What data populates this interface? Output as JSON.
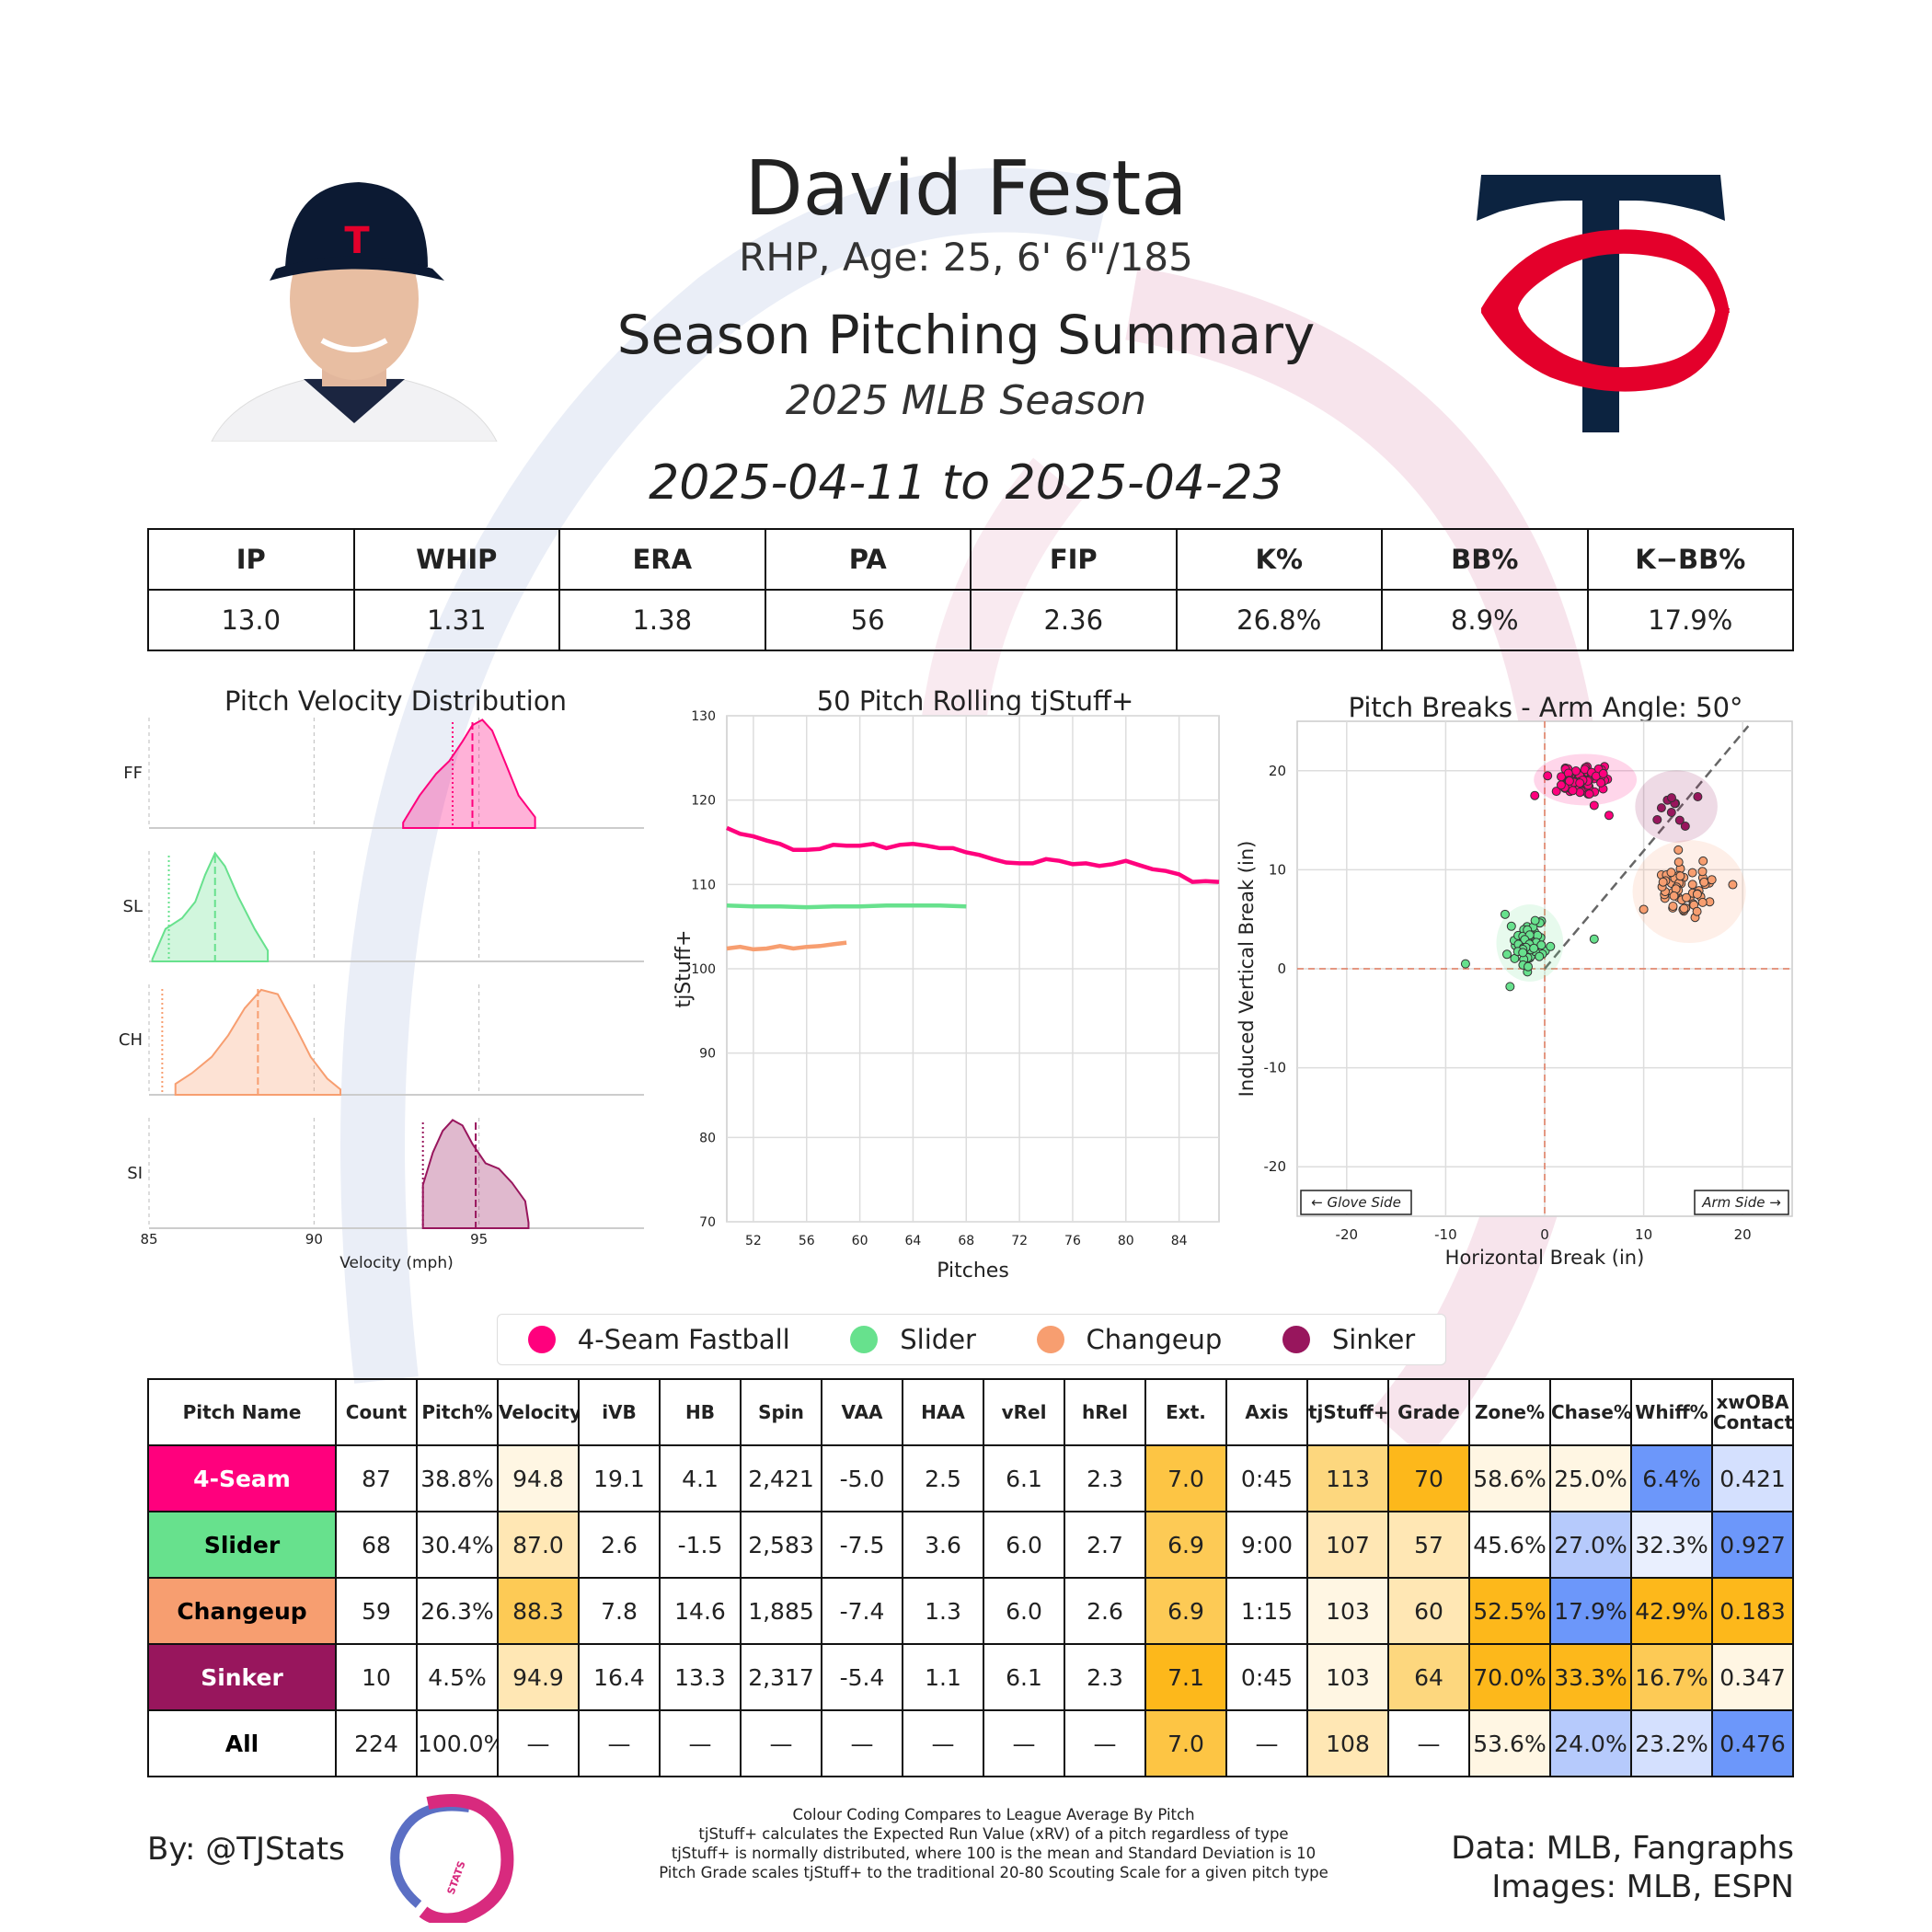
{
  "header": {
    "name": "David Festa",
    "bio": "RHP, Age: 25, 6' 6\"/185",
    "title": "Season Pitching Summary",
    "season": "2025 MLB Season",
    "dates": "2025-04-11 to 2025-04-23",
    "cap_logo_text": "TC"
  },
  "colors": {
    "ff": "#FF007D",
    "sl": "#67E18D",
    "ch": "#F79E70",
    "si": "#98165D"
  },
  "season_stats": {
    "headers": [
      "IP",
      "WHIP",
      "ERA",
      "PA",
      "FIP",
      "K%",
      "BB%",
      "K−BB%"
    ],
    "values": [
      "13.0",
      "1.31",
      "1.38",
      "56",
      "2.36",
      "26.8%",
      "8.9%",
      "17.9%"
    ]
  },
  "chart_data": [
    {
      "type": "area",
      "title": "Pitch Velocity Distribution",
      "xlabel": "Velocity (mph)",
      "x_ticks": [
        85,
        90,
        95
      ],
      "xlim": [
        85,
        100
      ],
      "series": [
        {
          "name": "FF",
          "color": "#FF007D",
          "x": [
            92.7,
            93.2,
            93.7,
            94.1,
            94.5,
            94.8,
            95.1,
            95.4,
            95.8,
            96.2,
            96.7
          ],
          "y": [
            0.05,
            0.3,
            0.5,
            0.62,
            0.8,
            0.95,
            1.0,
            0.9,
            0.6,
            0.3,
            0.1
          ],
          "mean": 94.8,
          "league_avg": 94.2
        },
        {
          "name": "SL",
          "color": "#67E18D",
          "x": [
            85.1,
            85.5,
            86.0,
            86.4,
            86.7,
            87.0,
            87.3,
            87.7,
            88.2,
            88.6
          ],
          "y": [
            0.02,
            0.3,
            0.4,
            0.55,
            0.8,
            1.0,
            0.88,
            0.6,
            0.3,
            0.1
          ],
          "mean": 87.0,
          "league_avg": 85.6
        },
        {
          "name": "CH",
          "color": "#F79E70",
          "x": [
            85.8,
            86.3,
            86.9,
            87.4,
            87.9,
            88.4,
            88.9,
            89.4,
            89.9,
            90.4,
            90.8
          ],
          "y": [
            0.1,
            0.2,
            0.35,
            0.55,
            0.8,
            0.97,
            0.93,
            0.65,
            0.35,
            0.15,
            0.05
          ],
          "mean": 88.3,
          "league_avg": 85.4
        },
        {
          "name": "SI",
          "color": "#98165D",
          "x": [
            93.3,
            93.6,
            93.9,
            94.2,
            94.5,
            94.8,
            95.2,
            95.6,
            96.0,
            96.4,
            96.5
          ],
          "y": [
            0.4,
            0.7,
            0.9,
            1.0,
            0.95,
            0.78,
            0.6,
            0.55,
            0.42,
            0.25,
            0.05
          ],
          "mean": 94.9,
          "league_avg": 93.3
        }
      ]
    },
    {
      "type": "line",
      "title": "50 Pitch Rolling tjStuff+",
      "xlabel": "Pitches",
      "ylabel": "tjStuff+",
      "x_ticks": [
        52,
        56,
        60,
        64,
        68,
        72,
        76,
        80,
        84
      ],
      "y_ticks": [
        70,
        80,
        90,
        100,
        110,
        120,
        130
      ],
      "xlim": [
        50,
        87
      ],
      "ylim": [
        70,
        130
      ],
      "series": [
        {
          "name": "4-Seam Fastball",
          "color": "#FF007D",
          "x": [
            50,
            51,
            52,
            53,
            54,
            55,
            56,
            57,
            58,
            59,
            60,
            61,
            62,
            63,
            64,
            65,
            66,
            67,
            68,
            69,
            70,
            71,
            72,
            73,
            74,
            75,
            76,
            77,
            78,
            79,
            80,
            81,
            82,
            83,
            84,
            85,
            86,
            87
          ],
          "y": [
            116.7,
            116.0,
            115.7,
            115.2,
            114.8,
            114.1,
            114.1,
            114.2,
            114.7,
            114.6,
            114.6,
            114.8,
            114.3,
            114.7,
            114.8,
            114.6,
            114.3,
            114.3,
            113.8,
            113.5,
            113.0,
            112.6,
            112.5,
            112.5,
            113.0,
            112.8,
            112.4,
            112.5,
            112.2,
            112.4,
            112.8,
            112.3,
            111.8,
            111.6,
            111.2,
            110.3,
            110.4,
            110.3
          ]
        },
        {
          "name": "Slider",
          "color": "#67E18D",
          "x": [
            50,
            52,
            54,
            56,
            58,
            60,
            62,
            64,
            66,
            68
          ],
          "y": [
            107.5,
            107.4,
            107.4,
            107.3,
            107.4,
            107.4,
            107.5,
            107.5,
            107.5,
            107.4
          ]
        },
        {
          "name": "Changeup",
          "color": "#F79E70",
          "x": [
            50,
            51,
            52,
            53,
            54,
            55,
            56,
            57,
            58,
            59
          ],
          "y": [
            102.4,
            102.6,
            102.3,
            102.4,
            102.7,
            102.4,
            102.6,
            102.7,
            102.9,
            103.1
          ]
        }
      ]
    },
    {
      "type": "scatter",
      "title": "Pitch Breaks - Arm Angle: 50°",
      "xlabel": "Horizontal Break (in)",
      "ylabel": "Induced Vertical Break (in)",
      "x_ticks": [
        -20,
        -10,
        0,
        10,
        20
      ],
      "y_ticks": [
        -20,
        -10,
        0,
        10,
        20
      ],
      "xlim": [
        -25,
        25
      ],
      "ylim": [
        -25,
        25
      ],
      "glove_side_label": "← Glove Side",
      "arm_side_label": "Arm Side →",
      "series": [
        {
          "name": "4-Seam Fastball",
          "color": "#FF007D",
          "center": [
            4.1,
            19.1
          ],
          "spread": [
            2.0,
            1.0
          ],
          "n": 87,
          "outliers": [
            [
              -1,
              17.5
            ],
            [
              6.5,
              15.5
            ],
            [
              5,
              16.5
            ]
          ]
        },
        {
          "name": "Slider",
          "color": "#67E18D",
          "center": [
            -1.5,
            2.6
          ],
          "spread": [
            1.3,
            1.5
          ],
          "n": 68,
          "outliers": [
            [
              -8,
              0.5
            ],
            [
              -3.5,
              -1.8
            ],
            [
              -4,
              5.5
            ],
            [
              5,
              3
            ]
          ]
        },
        {
          "name": "Changeup",
          "color": "#F79E70",
          "center": [
            14.6,
            7.8
          ],
          "spread": [
            2.2,
            2.0
          ],
          "n": 59,
          "outliers": [
            [
              10,
              6
            ],
            [
              19,
              8.5
            ],
            [
              13.5,
              12
            ]
          ]
        },
        {
          "name": "Sinker",
          "color": "#98165D",
          "center": [
            13.3,
            16.4
          ],
          "spread": [
            1.6,
            1.4
          ],
          "n": 10,
          "outliers": []
        }
      ]
    }
  ],
  "legend": [
    {
      "label": "4-Seam Fastball",
      "color": "#FF007D"
    },
    {
      "label": "Slider",
      "color": "#67E18D"
    },
    {
      "label": "Changeup",
      "color": "#F79E70"
    },
    {
      "label": "Sinker",
      "color": "#98165D"
    }
  ],
  "pitch_table": {
    "headers": [
      "Pitch Name",
      "Count",
      "Pitch%",
      "Velocity",
      "iVB",
      "HB",
      "Spin",
      "VAA",
      "HAA",
      "vRel",
      "hRel",
      "Ext.",
      "Axis",
      "tjStuff+",
      "Grade",
      "Zone%",
      "Chase%",
      "Whiff%",
      "xwOBA Contact"
    ],
    "rows": [
      {
        "name": "4-Seam",
        "name_bg": "#FF007D",
        "name_color": "#ffffff",
        "cells": [
          "87",
          "38.8%",
          "94.8",
          "19.1",
          "4.1",
          "2,421",
          "-5.0",
          "2.5",
          "6.1",
          "2.3",
          "7.0",
          "0:45",
          "113",
          "70",
          "58.6%",
          "25.0%",
          "6.4%",
          "0.421"
        ],
        "bgs": [
          "#fff",
          "#fff",
          "#FFF6E3",
          "#fff",
          "#fff",
          "#fff",
          "#fff",
          "#fff",
          "#fff",
          "#fff",
          "#FDC544",
          "#fff",
          "#FDD77E",
          "#FDB81B",
          "#FFF6E3",
          "#FFF6E3",
          "#6C97FA",
          "#D4E0FE"
        ]
      },
      {
        "name": "Slider",
        "name_bg": "#67E18D",
        "name_color": "#000000",
        "cells": [
          "68",
          "30.4%",
          "87.0",
          "2.6",
          "-1.5",
          "2,583",
          "-7.5",
          "3.6",
          "6.0",
          "2.7",
          "6.9",
          "9:00",
          "107",
          "57",
          "45.6%",
          "27.0%",
          "32.3%",
          "0.927"
        ],
        "bgs": [
          "#fff",
          "#fff",
          "#FFE7B4",
          "#fff",
          "#fff",
          "#fff",
          "#fff",
          "#fff",
          "#fff",
          "#fff",
          "#FDCA55",
          "#fff",
          "#FFE7B4",
          "#FFE7B4",
          "#fff",
          "#B6CAFC",
          "#E9EFFE",
          "#6C97FA"
        ]
      },
      {
        "name": "Changeup",
        "name_bg": "#F79E70",
        "name_color": "#000000",
        "cells": [
          "59",
          "26.3%",
          "88.3",
          "7.8",
          "14.6",
          "1,885",
          "-7.4",
          "1.3",
          "6.0",
          "2.6",
          "6.9",
          "1:15",
          "103",
          "60",
          "52.5%",
          "17.9%",
          "42.9%",
          "0.183"
        ],
        "bgs": [
          "#fff",
          "#fff",
          "#FDCA55",
          "#fff",
          "#fff",
          "#fff",
          "#fff",
          "#fff",
          "#fff",
          "#fff",
          "#FDCA55",
          "#fff",
          "#FFF6E3",
          "#FFE7B4",
          "#FDB81B",
          "#6C97FA",
          "#FDB81B",
          "#FDB81B"
        ]
      },
      {
        "name": "Sinker",
        "name_bg": "#98165D",
        "name_color": "#ffffff",
        "cells": [
          "10",
          "4.5%",
          "94.9",
          "16.4",
          "13.3",
          "2,317",
          "-5.4",
          "1.1",
          "6.1",
          "2.3",
          "7.1",
          "0:45",
          "103",
          "64",
          "70.0%",
          "33.3%",
          "16.7%",
          "0.347"
        ],
        "bgs": [
          "#fff",
          "#fff",
          "#FFE7B4",
          "#fff",
          "#fff",
          "#fff",
          "#fff",
          "#fff",
          "#fff",
          "#fff",
          "#FDB81B",
          "#fff",
          "#FFF6E3",
          "#FDD77E",
          "#FDB81B",
          "#FDB81B",
          "#FDCA55",
          "#FFF6E3"
        ]
      },
      {
        "name": "All",
        "name_bg": "#ffffff",
        "name_color": "#000000",
        "cells": [
          "224",
          "100.0%",
          "—",
          "—",
          "—",
          "—",
          "—",
          "—",
          "—",
          "—",
          "7.0",
          "—",
          "108",
          "—",
          "53.6%",
          "24.0%",
          "23.2%",
          "0.476"
        ],
        "bgs": [
          "#fff",
          "#fff",
          "#fff",
          "#fff",
          "#fff",
          "#fff",
          "#fff",
          "#fff",
          "#fff",
          "#fff",
          "#FDC544",
          "#fff",
          "#FFE7B4",
          "#fff",
          "#FFF6E3",
          "#B6CAFC",
          "#D4E0FE",
          "#6C97FA"
        ]
      }
    ]
  },
  "footer": {
    "by": "By: @TJStats",
    "logo_text": "STATS",
    "notes": [
      "Colour Coding Compares to League Average By Pitch",
      "tjStuff+ calculates the Expected Run Value (xRV) of a pitch regardless of type",
      "tjStuff+ is normally distributed, where 100 is the mean and Standard Deviation is 10",
      "Pitch Grade scales tjStuff+ to the traditional 20-80 Scouting Scale for a given pitch type"
    ],
    "data_source": "Data: MLB, Fangraphs",
    "image_source": "Images: MLB, ESPN"
  }
}
